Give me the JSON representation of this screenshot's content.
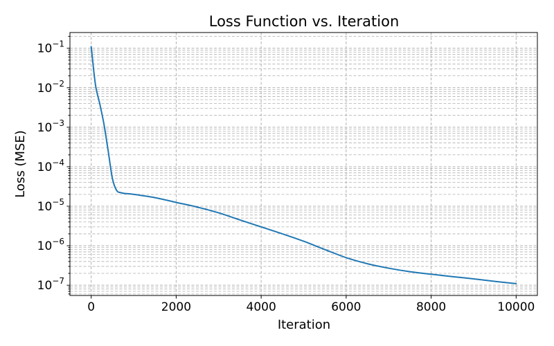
{
  "chart_data": {
    "type": "line",
    "title": "Loss Function vs. Iteration",
    "xlabel": "Iteration",
    "ylabel": "Loss (MSE)",
    "xlim": [
      -500,
      10500
    ],
    "ylim": [
      5.5e-08,
      0.25
    ],
    "yscale": "log",
    "x_ticks": [
      0,
      2000,
      4000,
      6000,
      8000,
      10000
    ],
    "x_tick_labels": [
      "0",
      "2000",
      "4000",
      "6000",
      "8000",
      "10000"
    ],
    "y_ticks": [
      {
        "value": 1e-07,
        "base": "10",
        "exp": "−7"
      },
      {
        "value": 1e-06,
        "base": "10",
        "exp": "−6"
      },
      {
        "value": 1e-05,
        "base": "10",
        "exp": "−5"
      },
      {
        "value": 0.0001,
        "base": "10",
        "exp": "−4"
      },
      {
        "value": 0.001,
        "base": "10",
        "exp": "−3"
      },
      {
        "value": 0.01,
        "base": "10",
        "exp": "−2"
      },
      {
        "value": 0.1,
        "base": "10",
        "exp": "−1"
      }
    ],
    "grid": true,
    "minor_grid": true,
    "series": [
      {
        "color": "#1f77b4",
        "x": [
          0,
          100,
          200,
          300,
          400,
          500,
          600,
          700,
          800,
          1000,
          1500,
          2000,
          2500,
          3000,
          3500,
          4000,
          4500,
          5000,
          5500,
          6000,
          6500,
          7000,
          7500,
          8000,
          8500,
          9000,
          9500,
          10000
        ],
        "y": [
          0.11,
          0.012,
          0.004,
          0.0012,
          0.00025,
          5e-05,
          2.5e-05,
          2.2e-05,
          2.1e-05,
          2e-05,
          1.65e-05,
          1.25e-05,
          9.5e-06,
          6.8e-06,
          4.5e-06,
          3e-06,
          2e-06,
          1.3e-06,
          8e-07,
          5e-07,
          3.5e-07,
          2.7e-07,
          2.2e-07,
          1.9e-07,
          1.65e-07,
          1.45e-07,
          1.25e-07,
          1.1e-07
        ]
      }
    ]
  }
}
